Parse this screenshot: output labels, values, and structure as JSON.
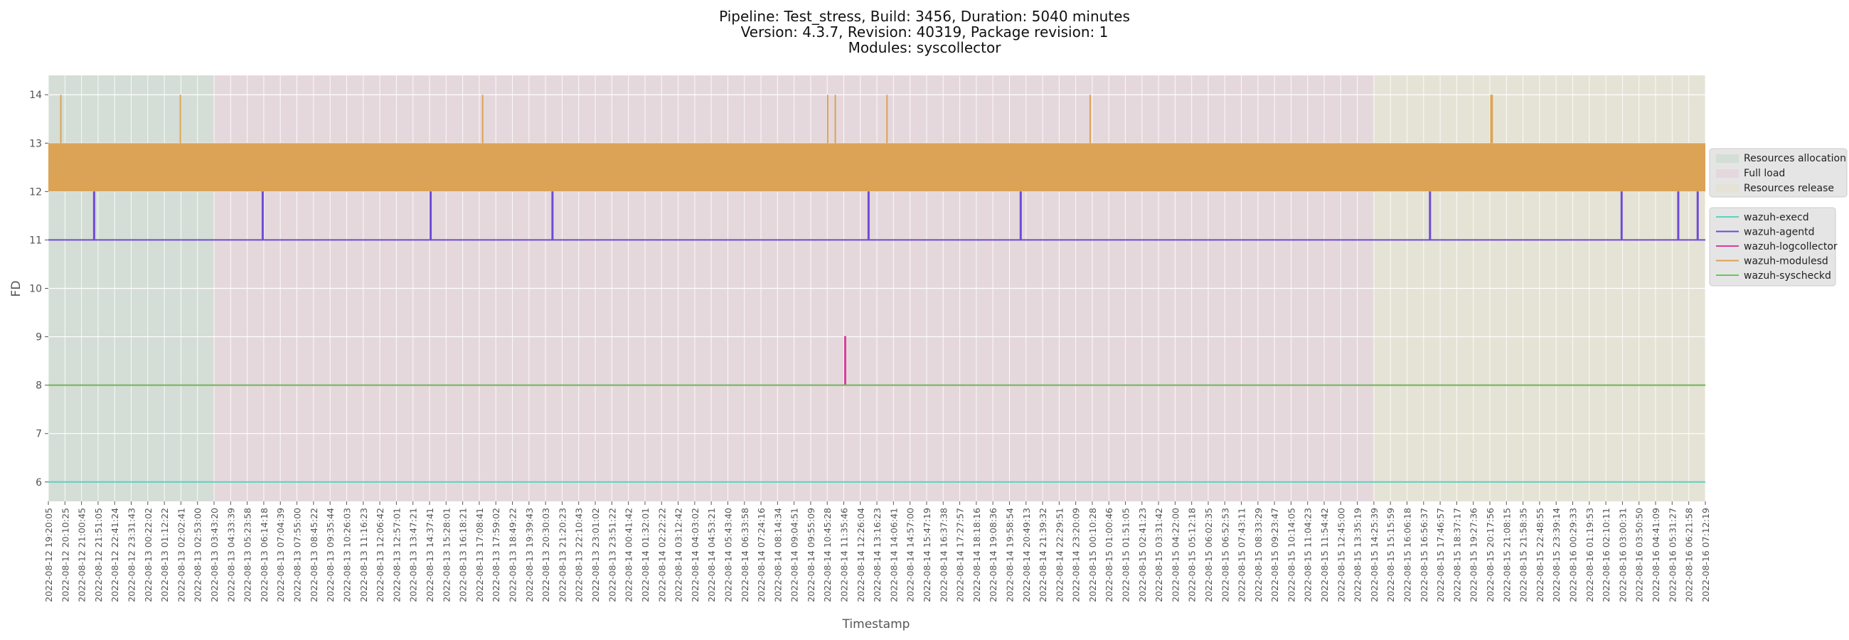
{
  "chart_data": {
    "type": "line",
    "title_lines": [
      "Pipeline: Test_stress, Build: 3456, Duration: 5040 minutes",
      "Version: 4.3.7, Revision: 40319, Package revision: 1",
      "Modules: syscollector"
    ],
    "xlabel": "Timestamp",
    "ylabel": "FD",
    "ylim": [
      5.6,
      14.4
    ],
    "y_ticks": [
      6,
      7,
      8,
      9,
      10,
      11,
      12,
      13,
      14
    ],
    "grid": true,
    "legend_placement": "right",
    "x_tick_labels": [
      "2022-08-12 19:20:05",
      "2022-08-12 20:10:25",
      "2022-08-12 21:00:45",
      "2022-08-12 21:51:05",
      "2022-08-12 22:41:24",
      "2022-08-12 23:31:43",
      "2022-08-13 00:22:02",
      "2022-08-13 01:12:22",
      "2022-08-13 02:02:41",
      "2022-08-13 02:53:00",
      "2022-08-13 03:43:20",
      "2022-08-13 04:33:39",
      "2022-08-13 05:23:58",
      "2022-08-13 06:14:18",
      "2022-08-13 07:04:39",
      "2022-08-13 07:55:00",
      "2022-08-13 08:45:22",
      "2022-08-13 09:35:44",
      "2022-08-13 10:26:03",
      "2022-08-13 11:16:23",
      "2022-08-13 12:06:42",
      "2022-08-13 12:57:01",
      "2022-08-13 13:47:21",
      "2022-08-13 14:37:41",
      "2022-08-13 15:28:01",
      "2022-08-13 16:18:21",
      "2022-08-13 17:08:41",
      "2022-08-13 17:59:02",
      "2022-08-13 18:49:22",
      "2022-08-13 19:39:43",
      "2022-08-13 20:30:03",
      "2022-08-13 21:20:23",
      "2022-08-13 22:10:43",
      "2022-08-13 23:01:02",
      "2022-08-13 23:51:22",
      "2022-08-14 00:41:42",
      "2022-08-14 01:32:01",
      "2022-08-14 02:22:22",
      "2022-08-14 03:12:42",
      "2022-08-14 04:03:02",
      "2022-08-14 04:53:21",
      "2022-08-14 05:43:40",
      "2022-08-14 06:33:58",
      "2022-08-14 07:24:16",
      "2022-08-14 08:14:34",
      "2022-08-14 09:04:51",
      "2022-08-14 09:55:09",
      "2022-08-14 10:45:28",
      "2022-08-14 11:35:46",
      "2022-08-14 12:26:04",
      "2022-08-14 13:16:23",
      "2022-08-14 14:06:41",
      "2022-08-14 14:57:00",
      "2022-08-14 15:47:19",
      "2022-08-14 16:37:38",
      "2022-08-14 17:27:57",
      "2022-08-14 18:18:16",
      "2022-08-14 19:08:36",
      "2022-08-14 19:58:54",
      "2022-08-14 20:49:13",
      "2022-08-14 21:39:32",
      "2022-08-14 22:29:51",
      "2022-08-14 23:20:09",
      "2022-08-15 00:10:28",
      "2022-08-15 01:00:46",
      "2022-08-15 01:51:05",
      "2022-08-15 02:41:23",
      "2022-08-15 03:31:42",
      "2022-08-15 04:22:00",
      "2022-08-15 05:12:18",
      "2022-08-15 06:02:35",
      "2022-08-15 06:52:53",
      "2022-08-15 07:43:11",
      "2022-08-15 08:33:29",
      "2022-08-15 09:23:47",
      "2022-08-15 10:14:05",
      "2022-08-15 11:04:23",
      "2022-08-15 11:54:42",
      "2022-08-15 12:45:00",
      "2022-08-15 13:35:19",
      "2022-08-15 14:25:39",
      "2022-08-15 15:15:59",
      "2022-08-15 16:06:18",
      "2022-08-15 16:56:37",
      "2022-08-15 17:46:57",
      "2022-08-15 18:37:17",
      "2022-08-15 19:27:36",
      "2022-08-15 20:17:56",
      "2022-08-15 21:08:15",
      "2022-08-15 21:58:35",
      "2022-08-15 22:48:55",
      "2022-08-15 23:39:14",
      "2022-08-16 00:29:33",
      "2022-08-16 01:19:53",
      "2022-08-16 02:10:11",
      "2022-08-16 03:00:31",
      "2022-08-16 03:50:50",
      "2022-08-16 04:41:09",
      "2022-08-16 05:31:27",
      "2022-08-16 06:21:58",
      "2022-08-16 07:12:19"
    ],
    "phases": [
      {
        "name": "Resources allocation",
        "start": "2022-08-12 19:20:05",
        "end": "2022-08-13 03:43:20",
        "color": "#d4ddd6"
      },
      {
        "name": "Full load",
        "start": "2022-08-13 03:43:20",
        "end": "2022-08-15 14:25:39",
        "color": "#e5d8dc"
      },
      {
        "name": "Resources release",
        "start": "2022-08-15 14:25:39",
        "end": "2022-08-16 07:12:19",
        "color": "#e4e3d5"
      }
    ],
    "series": [
      {
        "name": "wazuh-execd",
        "color": "#5fd0c0",
        "baseline": 6,
        "spikes": []
      },
      {
        "name": "wazuh-agentd",
        "color": "#6f4ad6",
        "baseline": 11,
        "spikes": [
          {
            "time": "2022-08-12 21:38:00",
            "value": 12
          },
          {
            "time": "2022-08-13 06:10:00",
            "value": 12
          },
          {
            "time": "2022-08-13 14:40:00",
            "value": 12
          },
          {
            "time": "2022-08-13 20:50:00",
            "value": 12
          },
          {
            "time": "2022-08-14 12:50:00",
            "value": 12
          },
          {
            "time": "2022-08-14 20:32:00",
            "value": 12
          },
          {
            "time": "2022-08-15 17:15:00",
            "value": 12
          },
          {
            "time": "2022-08-16 02:57:00",
            "value": 12
          },
          {
            "time": "2022-08-16 05:49:00",
            "value": 12
          },
          {
            "time": "2022-08-16 06:48:00",
            "value": 12
          }
        ]
      },
      {
        "name": "wazuh-logcollector",
        "color": "#d63f9a",
        "baseline": 8,
        "spikes": [
          {
            "time": "2022-08-14 11:39:00",
            "value": 9
          }
        ]
      },
      {
        "name": "wazuh-modulesd",
        "color": "#dba355",
        "baseline": 12,
        "oscillates_to": 13,
        "spikes": [
          {
            "time": "2022-08-12 19:58:00",
            "value": 14
          },
          {
            "time": "2022-08-13 02:01:00",
            "value": 14
          },
          {
            "time": "2022-08-13 17:19:00",
            "value": 14
          },
          {
            "time": "2022-08-14 10:47:00",
            "value": 14
          },
          {
            "time": "2022-08-14 11:10:00",
            "value": 14
          },
          {
            "time": "2022-08-14 13:47:00",
            "value": 14
          },
          {
            "time": "2022-08-15 00:04:00",
            "value": 14
          },
          {
            "time": "2022-08-15 20:21:00",
            "value": 14
          },
          {
            "time": "2022-08-15 20:25:00",
            "value": 14
          }
        ]
      },
      {
        "name": "wazuh-syscheckd",
        "color": "#6cc55a",
        "baseline": 8,
        "spikes": []
      }
    ]
  }
}
